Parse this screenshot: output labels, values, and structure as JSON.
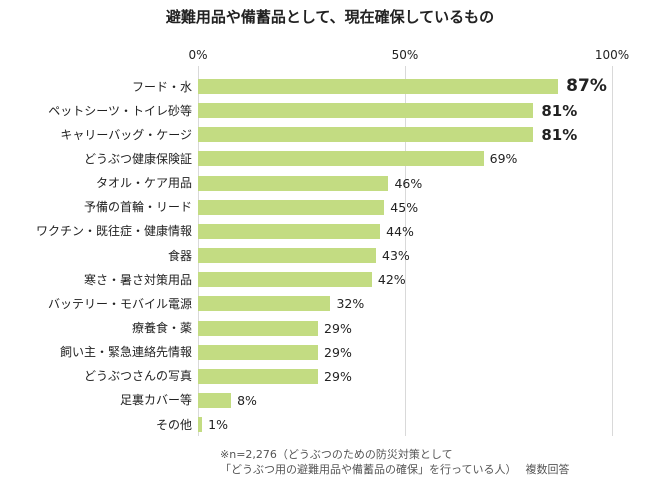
{
  "chart_data": {
    "type": "bar",
    "orientation": "horizontal",
    "title": "避難用品や備蓄品として、現在確保しているもの",
    "categories": [
      "フード・水",
      "ペットシーツ・トイレ砂等",
      "キャリーバッグ・ケージ",
      "どうぶつ健康保険証",
      "タオル・ケア用品",
      "予備の首輪・リード",
      "ワクチン・既往症・健康情報",
      "食器",
      "寒さ・暑さ対策用品",
      "バッテリー・モバイル電源",
      "療養食・薬",
      "飼い主・緊急連絡先情報",
      "どうぶつさんの写真",
      "足裏カバー等",
      "その他"
    ],
    "values": [
      87,
      81,
      81,
      69,
      46,
      45,
      44,
      43,
      42,
      32,
      29,
      29,
      29,
      8,
      1
    ],
    "value_labels": [
      "87%",
      "81%",
      "81%",
      "69%",
      "46%",
      "45%",
      "44%",
      "43%",
      "42%",
      "32%",
      "29%",
      "29%",
      "29%",
      "8%",
      "1%"
    ],
    "xlim": [
      0,
      100
    ],
    "xticks": [
      "0%",
      "50%",
      "100%"
    ],
    "grid": true,
    "bar_color": "#c3dc82",
    "note": [
      "※n=2,276（どうぶつのための防災対策として",
      "「どうぶつ用の避難用品や備蓄品の確保」を行っている人）　 複数回答"
    ]
  }
}
